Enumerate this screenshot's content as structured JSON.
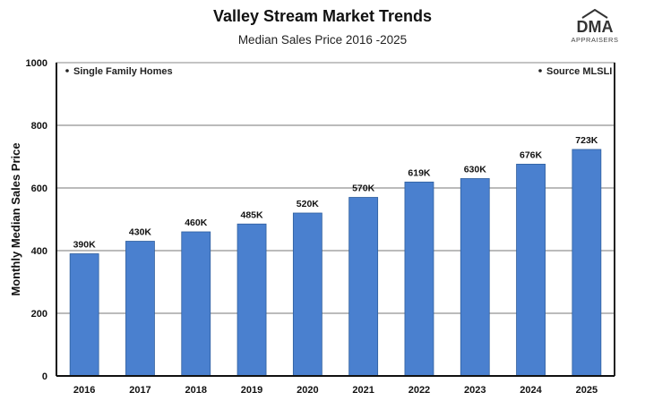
{
  "logo": {
    "text": "DMA",
    "subtext": "APPRAISERS"
  },
  "chart_data": {
    "type": "bar",
    "title": "Valley Stream Market Trends",
    "subtitle": "Median Sales Price 2016 -2025",
    "xlabel": "",
    "ylabel": "Monthly Median Sales Price",
    "categories": [
      "2016",
      "2017",
      "2018",
      "2019",
      "2020",
      "2021",
      "2022",
      "2023",
      "2024",
      "2025"
    ],
    "values": [
      390,
      430,
      460,
      485,
      520,
      570,
      619,
      630,
      676,
      723
    ],
    "data_labels": [
      "390K",
      "430K",
      "460K",
      "485K",
      "520K",
      "570K",
      "619K",
      "630K",
      "676K",
      "723K"
    ],
    "ylim": [
      0,
      1000
    ],
    "yticks": [
      0,
      200,
      400,
      600,
      800,
      1000
    ],
    "grid": true,
    "annotations": [
      "Single Family Homes",
      "Source MLSLI"
    ],
    "colors": {
      "bar": "#4a80cf",
      "bar_edge": "#2f5f9e"
    }
  }
}
